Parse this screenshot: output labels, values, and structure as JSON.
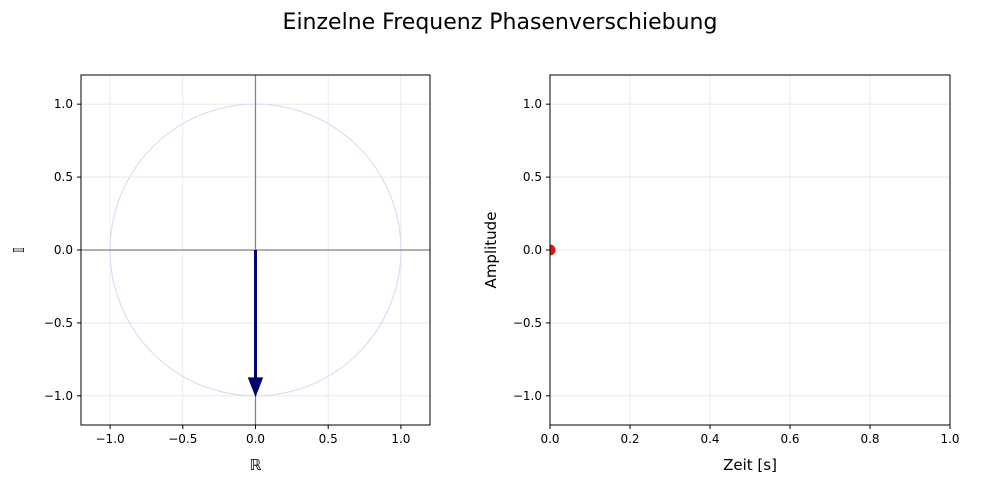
{
  "title": "Einzelne Frequenz Phasenverschiebung",
  "colors": {
    "grid": "#e6e6e6",
    "circle": "#d6e0f5",
    "crosshair": "#808080",
    "phasor": "#00006e",
    "point": "#e0140a"
  },
  "chart_data": [
    {
      "type": "line",
      "panel": "phasor",
      "xlabel": "ℝ",
      "ylabel": "𝕀",
      "xlim": [
        -1.2,
        1.2
      ],
      "ylim": [
        -1.2,
        1.2
      ],
      "xticks": [
        -1.0,
        -0.5,
        0.0,
        0.5,
        1.0
      ],
      "yticks": [
        -1.0,
        -0.5,
        0.0,
        0.5,
        1.0
      ],
      "xtick_labels": [
        "−1.0",
        "−0.5",
        "0.0",
        "0.5",
        "1.0"
      ],
      "ytick_labels": [
        "−1.0",
        "−0.5",
        "0.0",
        "0.5",
        "1.0"
      ],
      "grid": true,
      "unit_circle_radius": 1.0,
      "phasor": {
        "x0": 0.0,
        "y0": 0.0,
        "x1": 0.0,
        "y1": -1.0
      }
    },
    {
      "type": "scatter",
      "panel": "time",
      "xlabel": "Zeit [s]",
      "ylabel": "Amplitude",
      "xlim": [
        0.0,
        1.0
      ],
      "ylim": [
        -1.2,
        1.2
      ],
      "xticks": [
        0.0,
        0.2,
        0.4,
        0.6,
        0.8,
        1.0
      ],
      "yticks": [
        -1.0,
        -0.5,
        0.0,
        0.5,
        1.0
      ],
      "xtick_labels": [
        "0.0",
        "0.2",
        "0.4",
        "0.6",
        "0.8",
        "1.0"
      ],
      "ytick_labels": [
        "−1.0",
        "−0.5",
        "0.0",
        "0.5",
        "1.0"
      ],
      "grid": true,
      "points": [
        {
          "x": 0.0,
          "y": 0.0
        }
      ]
    }
  ]
}
